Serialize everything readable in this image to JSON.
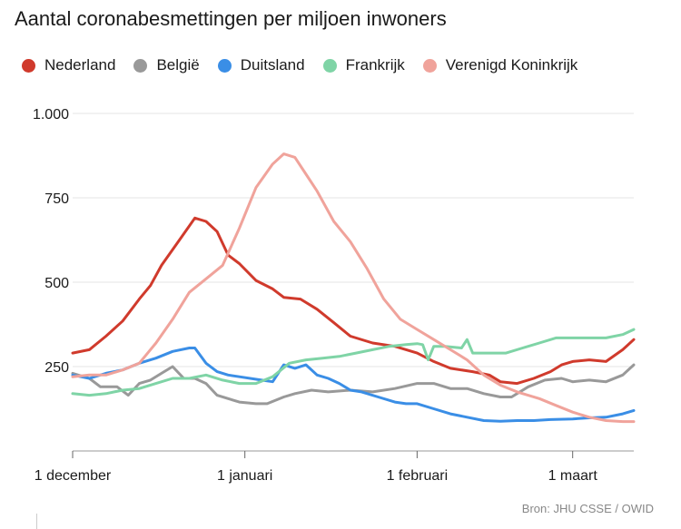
{
  "chart_data": {
    "type": "line",
    "title": "Aantal coronabesmettingen per miljoen inwoners",
    "source": "Bron: JHU CSSE / OWID",
    "ylim": [
      0,
      1000
    ],
    "yticks": [
      250,
      500,
      750,
      1000
    ],
    "ytick_labels": [
      "250",
      "500",
      "750",
      "1.000"
    ],
    "xlim": [
      0,
      101
    ],
    "xticks": [
      0,
      31,
      62,
      90
    ],
    "xtick_labels": [
      "1 december",
      "1 januari",
      "1 februari",
      "1 maart"
    ],
    "legend_position": "top",
    "series": [
      {
        "name": "Nederland",
        "color": "#d03a2c",
        "points": [
          [
            0,
            290
          ],
          [
            3,
            300
          ],
          [
            6,
            340
          ],
          [
            9,
            385
          ],
          [
            12,
            450
          ],
          [
            14,
            490
          ],
          [
            16,
            550
          ],
          [
            19,
            620
          ],
          [
            22,
            690
          ],
          [
            24,
            680
          ],
          [
            26,
            650
          ],
          [
            28,
            580
          ],
          [
            30,
            555
          ],
          [
            33,
            505
          ],
          [
            36,
            480
          ],
          [
            38,
            455
          ],
          [
            41,
            450
          ],
          [
            44,
            420
          ],
          [
            47,
            380
          ],
          [
            50,
            340
          ],
          [
            54,
            320
          ],
          [
            58,
            310
          ],
          [
            62,
            290
          ],
          [
            65,
            265
          ],
          [
            68,
            245
          ],
          [
            72,
            235
          ],
          [
            75,
            225
          ],
          [
            77,
            205
          ],
          [
            80,
            200
          ],
          [
            83,
            215
          ],
          [
            86,
            235
          ],
          [
            88,
            255
          ],
          [
            90,
            265
          ],
          [
            93,
            270
          ],
          [
            96,
            265
          ],
          [
            99,
            300
          ],
          [
            101,
            330
          ]
        ]
      },
      {
        "name": "België",
        "color": "#999999",
        "points": [
          [
            0,
            230
          ],
          [
            3,
            215
          ],
          [
            5,
            190
          ],
          [
            8,
            190
          ],
          [
            10,
            165
          ],
          [
            12,
            200
          ],
          [
            14,
            210
          ],
          [
            16,
            230
          ],
          [
            18,
            250
          ],
          [
            20,
            215
          ],
          [
            22,
            215
          ],
          [
            24,
            200
          ],
          [
            26,
            165
          ],
          [
            28,
            155
          ],
          [
            30,
            145
          ],
          [
            33,
            140
          ],
          [
            35,
            140
          ],
          [
            38,
            160
          ],
          [
            40,
            170
          ],
          [
            43,
            180
          ],
          [
            46,
            175
          ],
          [
            50,
            180
          ],
          [
            54,
            175
          ],
          [
            58,
            185
          ],
          [
            62,
            200
          ],
          [
            65,
            200
          ],
          [
            68,
            185
          ],
          [
            71,
            185
          ],
          [
            74,
            170
          ],
          [
            77,
            160
          ],
          [
            79,
            160
          ],
          [
            82,
            190
          ],
          [
            85,
            210
          ],
          [
            88,
            215
          ],
          [
            90,
            205
          ],
          [
            93,
            210
          ],
          [
            96,
            205
          ],
          [
            99,
            225
          ],
          [
            101,
            255
          ]
        ]
      },
      {
        "name": "Duitsland",
        "color": "#3a8ee6",
        "points": [
          [
            0,
            225
          ],
          [
            3,
            215
          ],
          [
            6,
            230
          ],
          [
            9,
            240
          ],
          [
            12,
            260
          ],
          [
            15,
            275
          ],
          [
            18,
            295
          ],
          [
            21,
            305
          ],
          [
            22,
            305
          ],
          [
            24,
            260
          ],
          [
            26,
            235
          ],
          [
            28,
            225
          ],
          [
            30,
            220
          ],
          [
            34,
            210
          ],
          [
            36,
            205
          ],
          [
            38,
            255
          ],
          [
            40,
            245
          ],
          [
            42,
            255
          ],
          [
            44,
            225
          ],
          [
            46,
            215
          ],
          [
            48,
            200
          ],
          [
            50,
            180
          ],
          [
            52,
            175
          ],
          [
            55,
            160
          ],
          [
            58,
            145
          ],
          [
            60,
            140
          ],
          [
            62,
            140
          ],
          [
            65,
            125
          ],
          [
            68,
            110
          ],
          [
            71,
            100
          ],
          [
            74,
            90
          ],
          [
            77,
            88
          ],
          [
            80,
            90
          ],
          [
            83,
            90
          ],
          [
            86,
            93
          ],
          [
            90,
            95
          ],
          [
            93,
            98
          ],
          [
            96,
            100
          ],
          [
            99,
            110
          ],
          [
            101,
            120
          ]
        ]
      },
      {
        "name": "Frankrijk",
        "color": "#7fd4a6",
        "points": [
          [
            0,
            170
          ],
          [
            3,
            165
          ],
          [
            6,
            170
          ],
          [
            9,
            180
          ],
          [
            12,
            185
          ],
          [
            15,
            200
          ],
          [
            18,
            215
          ],
          [
            21,
            215
          ],
          [
            24,
            225
          ],
          [
            27,
            210
          ],
          [
            30,
            200
          ],
          [
            33,
            200
          ],
          [
            36,
            220
          ],
          [
            39,
            260
          ],
          [
            42,
            270
          ],
          [
            45,
            275
          ],
          [
            48,
            280
          ],
          [
            51,
            290
          ],
          [
            54,
            300
          ],
          [
            57,
            310
          ],
          [
            60,
            315
          ],
          [
            62,
            318
          ],
          [
            63,
            315
          ],
          [
            64,
            270
          ],
          [
            65,
            310
          ],
          [
            67,
            310
          ],
          [
            70,
            305
          ],
          [
            71,
            330
          ],
          [
            72,
            290
          ],
          [
            75,
            290
          ],
          [
            78,
            290
          ],
          [
            81,
            305
          ],
          [
            84,
            320
          ],
          [
            87,
            335
          ],
          [
            90,
            335
          ],
          [
            93,
            335
          ],
          [
            96,
            335
          ],
          [
            99,
            345
          ],
          [
            101,
            360
          ]
        ]
      },
      {
        "name": "Verenigd Koninkrijk",
        "color": "#f0a39b",
        "points": [
          [
            0,
            220
          ],
          [
            3,
            225
          ],
          [
            6,
            225
          ],
          [
            9,
            240
          ],
          [
            12,
            260
          ],
          [
            15,
            320
          ],
          [
            18,
            390
          ],
          [
            21,
            470
          ],
          [
            24,
            510
          ],
          [
            27,
            550
          ],
          [
            30,
            660
          ],
          [
            33,
            780
          ],
          [
            36,
            850
          ],
          [
            38,
            880
          ],
          [
            40,
            870
          ],
          [
            42,
            820
          ],
          [
            44,
            770
          ],
          [
            47,
            680
          ],
          [
            50,
            620
          ],
          [
            53,
            540
          ],
          [
            56,
            450
          ],
          [
            59,
            390
          ],
          [
            62,
            360
          ],
          [
            65,
            330
          ],
          [
            68,
            300
          ],
          [
            71,
            270
          ],
          [
            74,
            225
          ],
          [
            77,
            195
          ],
          [
            80,
            175
          ],
          [
            84,
            155
          ],
          [
            87,
            135
          ],
          [
            90,
            115
          ],
          [
            93,
            100
          ],
          [
            96,
            90
          ],
          [
            99,
            87
          ],
          [
            101,
            87
          ]
        ]
      }
    ]
  }
}
